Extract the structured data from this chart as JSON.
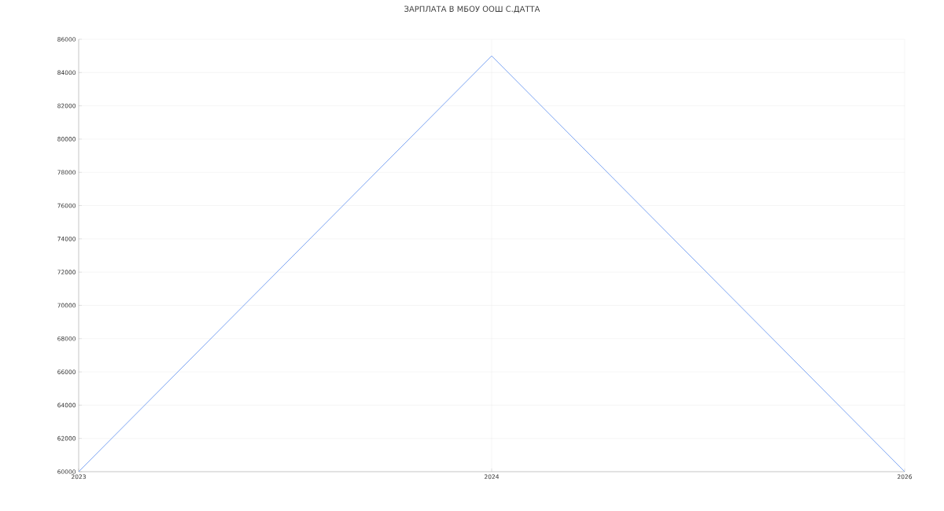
{
  "chart_data": {
    "type": "line",
    "title": "ЗАРПЛАТА В МБОУ ООШ С.ДАТТА",
    "categories": [
      "2023",
      "2024",
      "2026"
    ],
    "series": [
      {
        "color": "#5b8def",
        "values": [
          60000,
          85000,
          60000
        ]
      }
    ],
    "ylim": [
      60000,
      86000
    ],
    "yticks": [
      60000,
      62000,
      64000,
      66000,
      68000,
      70000,
      72000,
      74000,
      76000,
      78000,
      80000,
      82000,
      84000,
      86000
    ],
    "grid": true,
    "marker": "none",
    "line_style": "solid"
  }
}
